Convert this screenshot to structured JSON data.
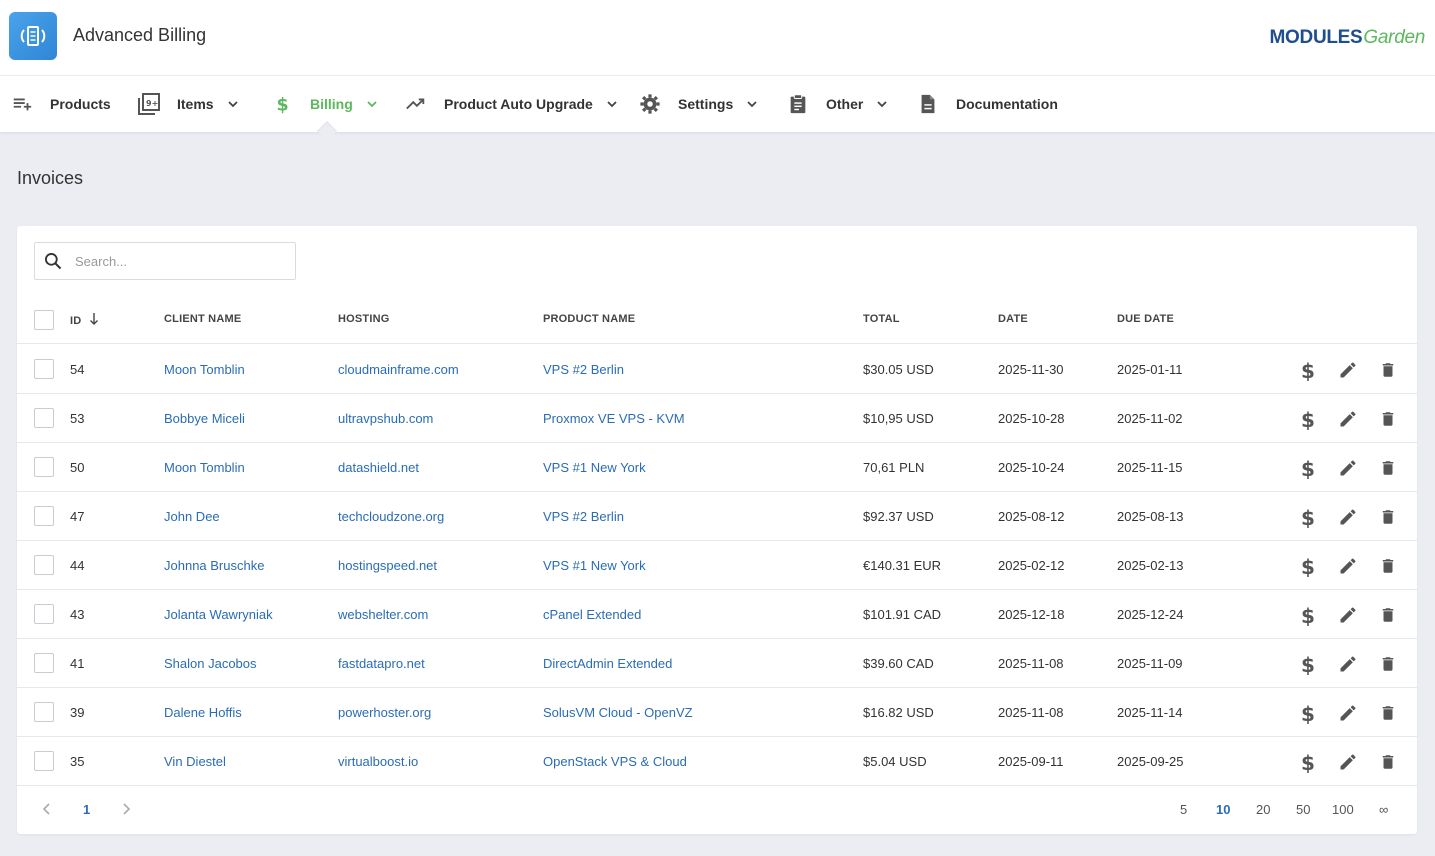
{
  "app": {
    "title": "Advanced Billing",
    "brand_main": "MODULES",
    "brand_sub": "Garden"
  },
  "nav": {
    "items": [
      {
        "label": "Products",
        "icon": "playlist-add-icon"
      },
      {
        "label": "Items",
        "icon": "items-icon"
      },
      {
        "label": "Billing",
        "icon": "dollar-icon"
      },
      {
        "label": "Product Auto Upgrade",
        "icon": "trending-up-icon"
      },
      {
        "label": "Settings",
        "icon": "gear-icon"
      },
      {
        "label": "Other",
        "icon": "clipboard-icon"
      },
      {
        "label": "Documentation",
        "icon": "document-icon"
      }
    ],
    "active": "Billing",
    "accent_color": "#5cb85c"
  },
  "page": {
    "title": "Invoices"
  },
  "search": {
    "placeholder": "Search..."
  },
  "table": {
    "headers": {
      "id": "ID",
      "client": "CLIENT NAME",
      "hosting": "HOSTING",
      "product": "PRODUCT NAME",
      "total": "TOTAL",
      "date": "DATE",
      "due": "DUE DATE"
    },
    "rows": [
      {
        "id": "54",
        "client": "Moon Tomblin",
        "hosting": "cloudmainframe.com",
        "product": "VPS #2 Berlin",
        "total": "$30.05 USD",
        "date": "2025-11-30",
        "due": "2025-01-11"
      },
      {
        "id": "53",
        "client": "Bobbye Miceli",
        "hosting": "ultravpshub.com",
        "product": "Proxmox VE VPS - KVM",
        "total": "$10,95 USD",
        "date": "2025-10-28",
        "due": "2025-11-02"
      },
      {
        "id": "50",
        "client": "Moon Tomblin",
        "hosting": "datashield.net",
        "product": "VPS #1 New York",
        "total": "70,61 PLN",
        "date": "2025-10-24",
        "due": "2025-11-15"
      },
      {
        "id": "47",
        "client": "John Dee",
        "hosting": "techcloudzone.org",
        "product": "VPS #2 Berlin",
        "total": "$92.37 USD",
        "date": "2025-08-12",
        "due": "2025-08-13"
      },
      {
        "id": "44",
        "client": "Johnna Bruschke",
        "hosting": "hostingspeed.net",
        "product": "VPS #1 New York",
        "total": "€140.31 EUR",
        "date": "2025-02-12",
        "due": "2025-02-13"
      },
      {
        "id": "43",
        "client": "Jolanta Wawryniak",
        "hosting": "webshelter.com",
        "product": "cPanel Extended",
        "total": "$101.91 CAD",
        "date": "2025-12-18",
        "due": "2025-12-24"
      },
      {
        "id": "41",
        "client": "Shalon Jacobos",
        "hosting": "fastdatapro.net",
        "product": "DirectAdmin Extended",
        "total": "$39.60 CAD",
        "date": "2025-11-08",
        "due": "2025-11-09"
      },
      {
        "id": "39",
        "client": "Dalene Hoffis",
        "hosting": "powerhoster.org",
        "product": "SolusVM Cloud - OpenVZ",
        "total": "$16.82 USD",
        "date": "2025-11-08",
        "due": "2025-11-14"
      },
      {
        "id": "35",
        "client": "Vin Diestel",
        "hosting": "virtualboost.io",
        "product": "OpenStack VPS & Cloud",
        "total": "$5.04 USD",
        "date": "2025-09-11",
        "due": "2025-09-25"
      }
    ],
    "row_actions": [
      "dollar-icon",
      "pencil-icon",
      "trash-icon"
    ]
  },
  "pagination": {
    "current_page": "1",
    "page_sizes": [
      "5",
      "10",
      "20",
      "50",
      "100",
      "∞"
    ],
    "selected_size": "10"
  }
}
